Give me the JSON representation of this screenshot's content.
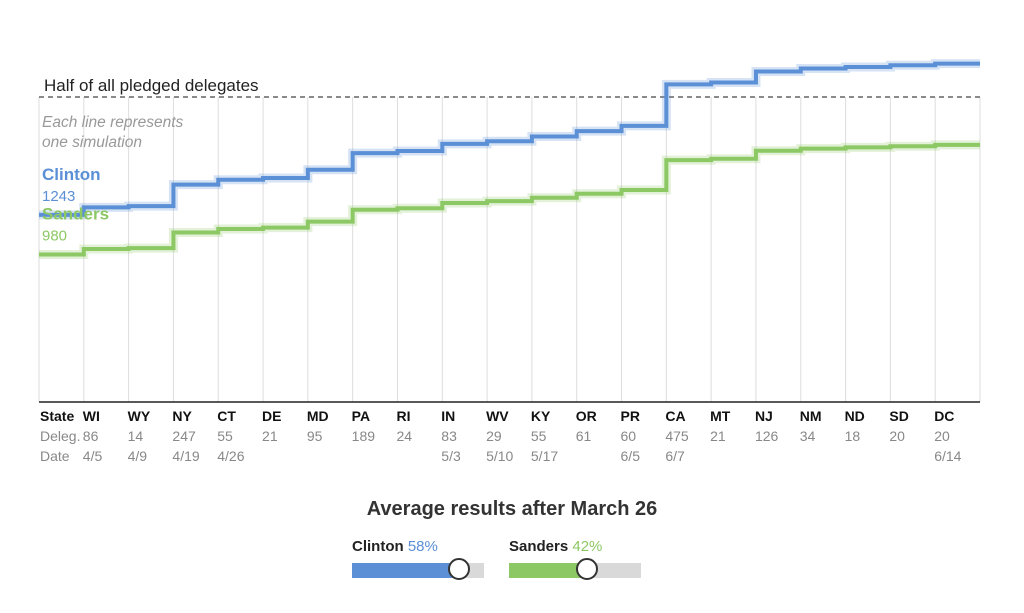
{
  "chart_data": {
    "type": "line",
    "title": "",
    "threshold": {
      "label": "Half of all pledged delegates",
      "value": 2026
    },
    "annotation": "Each line represents\none simulation",
    "ylim": [
      0,
      2300
    ],
    "row_labels": {
      "state": "State",
      "delegates": "Deleg.",
      "date": "Date"
    },
    "contests": [
      {
        "state": "WI",
        "delegates": "86",
        "date": "4/5"
      },
      {
        "state": "WY",
        "delegates": "14",
        "date": "4/9"
      },
      {
        "state": "NY",
        "delegates": "247",
        "date": "4/19"
      },
      {
        "state": "CT",
        "delegates": "55",
        "date": "4/26"
      },
      {
        "state": "DE",
        "delegates": "21",
        "date": ""
      },
      {
        "state": "MD",
        "delegates": "95",
        "date": ""
      },
      {
        "state": "PA",
        "delegates": "189",
        "date": ""
      },
      {
        "state": "RI",
        "delegates": "24",
        "date": ""
      },
      {
        "state": "IN",
        "delegates": "83",
        "date": "5/3"
      },
      {
        "state": "WV",
        "delegates": "29",
        "date": "5/10"
      },
      {
        "state": "KY",
        "delegates": "55",
        "date": "5/17"
      },
      {
        "state": "OR",
        "delegates": "61",
        "date": ""
      },
      {
        "state": "PR",
        "delegates": "60",
        "date": "6/5"
      },
      {
        "state": "CA",
        "delegates": "475",
        "date": "6/7"
      },
      {
        "state": "MT",
        "delegates": "21",
        "date": ""
      },
      {
        "state": "NJ",
        "delegates": "126",
        "date": ""
      },
      {
        "state": "NM",
        "delegates": "34",
        "date": ""
      },
      {
        "state": "ND",
        "delegates": "18",
        "date": ""
      },
      {
        "state": "SD",
        "delegates": "20",
        "date": ""
      },
      {
        "state": "DC",
        "delegates": "20",
        "date": "6/14"
      }
    ],
    "series": [
      {
        "name": "Clinton",
        "start_label": "1243",
        "start": 1243,
        "values": [
          1293,
          1301,
          1444,
          1476,
          1488,
          1543,
          1653,
          1667,
          1715,
          1732,
          1764,
          1799,
          1834,
          2110,
          2122,
          2195,
          2215,
          2225,
          2237,
          2248
        ]
      },
      {
        "name": "Sanders",
        "start_label": "980",
        "start": 980,
        "values": [
          1016,
          1022,
          1126,
          1149,
          1158,
          1198,
          1277,
          1287,
          1322,
          1334,
          1357,
          1383,
          1408,
          1607,
          1616,
          1669,
          1683,
          1691,
          1699,
          1708
        ]
      }
    ]
  },
  "controls": {
    "title": "Average results after March 26",
    "sliders": [
      {
        "name": "Clinton",
        "percent": "58%",
        "fill_fraction": 0.81
      },
      {
        "name": "Sanders",
        "percent": "42%",
        "fill_fraction": 0.59
      }
    ]
  },
  "colors": {
    "clinton": "#5b8fd6",
    "sanders": "#8cc864",
    "grid": "#dddddd",
    "axis": "#222222",
    "muted": "#888888"
  }
}
